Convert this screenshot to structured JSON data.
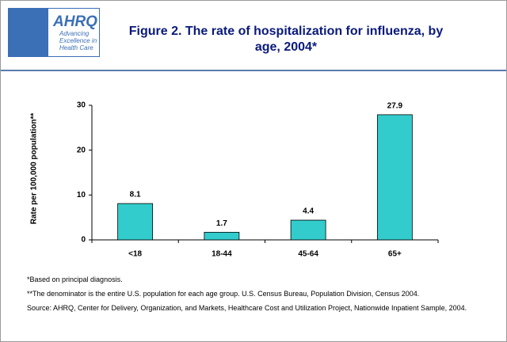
{
  "header": {
    "logo_name": "AHRQ",
    "logo_tagline": "Advancing Excellence in Health Care"
  },
  "chart_data": {
    "type": "bar",
    "title": "Figure 2. The rate of hospitalization for influenza, by age, 2004*",
    "y_label": "Rate per 100,000 population**",
    "categories": [
      "<18",
      "18-44",
      "45-64",
      "65+"
    ],
    "values": [
      8.1,
      1.7,
      4.4,
      27.9
    ],
    "color": "#33cccc",
    "ylim": [
      0,
      30
    ],
    "yticks": [
      0,
      10,
      20,
      30
    ]
  },
  "notes": [
    "*Based on principal diagnosis.",
    "**The denominator is the entire U.S. population for each age group. U.S. Census Bureau, Population Division, Census 2004.",
    "Source: AHRQ, Center for Delivery, Organization, and Markets, Healthcare Cost and Utilization Project, Nationwide Inpatient Sample, 2004."
  ]
}
